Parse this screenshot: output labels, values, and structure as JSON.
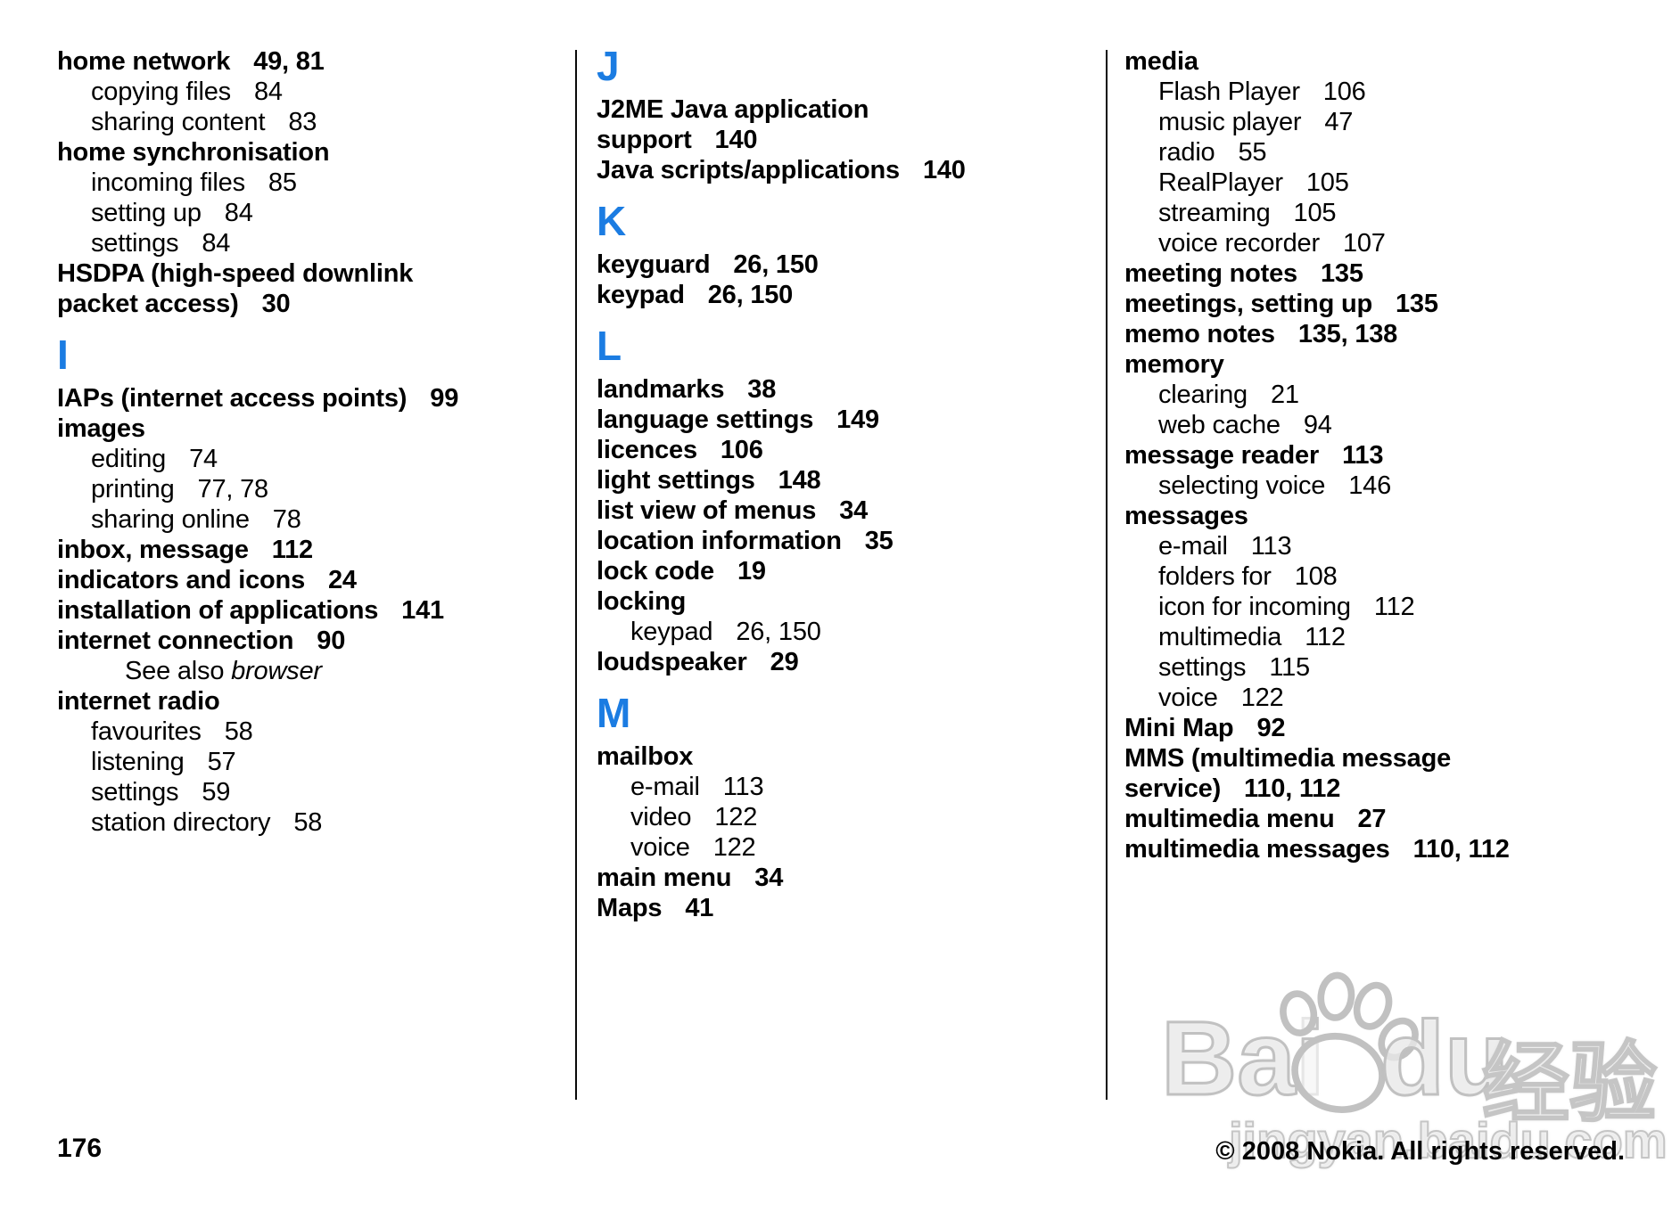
{
  "accent_color": "#1b7ce2",
  "columns": [
    {
      "blocks": [
        {
          "type": "entry",
          "label": "home network",
          "pages": "49, 81",
          "bold": true
        },
        {
          "type": "entry",
          "label": "copying files",
          "pages": "84",
          "sub": true
        },
        {
          "type": "entry",
          "label": "sharing content",
          "pages": "83",
          "sub": true
        },
        {
          "type": "entry",
          "label": "home synchronisation",
          "bold": true
        },
        {
          "type": "entry",
          "label": "incoming files",
          "pages": "85",
          "sub": true
        },
        {
          "type": "entry",
          "label": "setting up",
          "pages": "84",
          "sub": true
        },
        {
          "type": "entry",
          "label": "settings",
          "pages": "84",
          "sub": true
        },
        {
          "type": "entry",
          "lines": [
            "HSDPA (high-speed downlink",
            "packet access)"
          ],
          "pages": "30",
          "bold": true
        },
        {
          "type": "letter",
          "label": "I"
        },
        {
          "type": "entry",
          "label": "IAPs (internet access points)",
          "pages": "99",
          "bold": true
        },
        {
          "type": "entry",
          "label": "images",
          "bold": true
        },
        {
          "type": "entry",
          "label": "editing",
          "pages": "74",
          "sub": true
        },
        {
          "type": "entry",
          "label": "printing",
          "pages": "77, 78",
          "sub": true
        },
        {
          "type": "entry",
          "label": "sharing online",
          "pages": "78",
          "sub": true
        },
        {
          "type": "entry",
          "label": "inbox, message",
          "pages": "112",
          "bold": true
        },
        {
          "type": "entry",
          "label": "indicators and icons",
          "pages": "24",
          "bold": true
        },
        {
          "type": "entry",
          "label": "installation of applications",
          "pages": "141",
          "bold": true
        },
        {
          "type": "entry",
          "label": "internet connection",
          "pages": "90",
          "bold": true
        },
        {
          "type": "seealso",
          "prefix": "See also ",
          "ref": "browser"
        },
        {
          "type": "entry",
          "label": "internet radio",
          "bold": true
        },
        {
          "type": "entry",
          "label": "favourites",
          "pages": "58",
          "sub": true
        },
        {
          "type": "entry",
          "label": "listening",
          "pages": "57",
          "sub": true
        },
        {
          "type": "entry",
          "label": "settings",
          "pages": "59",
          "sub": true
        },
        {
          "type": "entry",
          "label": "station directory",
          "pages": "58",
          "sub": true
        }
      ]
    },
    {
      "blocks": [
        {
          "type": "letter",
          "label": "J"
        },
        {
          "type": "entry",
          "lines": [
            "J2ME Java application",
            "support"
          ],
          "pages": "140",
          "bold": true
        },
        {
          "type": "entry",
          "label": "Java scripts/applications",
          "pages": "140",
          "bold": true
        },
        {
          "type": "letter",
          "label": "K"
        },
        {
          "type": "entry",
          "label": "keyguard",
          "pages": "26, 150",
          "bold": true
        },
        {
          "type": "entry",
          "label": "keypad",
          "pages": "26, 150",
          "bold": true
        },
        {
          "type": "letter",
          "label": "L"
        },
        {
          "type": "entry",
          "label": "landmarks",
          "pages": "38",
          "bold": true
        },
        {
          "type": "entry",
          "label": "language settings",
          "pages": "149",
          "bold": true
        },
        {
          "type": "entry",
          "label": "licences",
          "pages": "106",
          "bold": true
        },
        {
          "type": "entry",
          "label": "light settings",
          "pages": "148",
          "bold": true
        },
        {
          "type": "entry",
          "label": "list view of menus",
          "pages": "34",
          "bold": true
        },
        {
          "type": "entry",
          "label": "location information",
          "pages": "35",
          "bold": true
        },
        {
          "type": "entry",
          "label": "lock code",
          "pages": "19",
          "bold": true
        },
        {
          "type": "entry",
          "label": "locking",
          "bold": true
        },
        {
          "type": "entry",
          "label": "keypad",
          "pages": "26, 150",
          "sub": true
        },
        {
          "type": "entry",
          "label": "loudspeaker",
          "pages": "29",
          "bold": true
        },
        {
          "type": "letter",
          "label": "M"
        },
        {
          "type": "entry",
          "label": "mailbox",
          "bold": true
        },
        {
          "type": "entry",
          "label": "e-mail",
          "pages": "113",
          "sub": true
        },
        {
          "type": "entry",
          "label": "video",
          "pages": "122",
          "sub": true
        },
        {
          "type": "entry",
          "label": "voice",
          "pages": "122",
          "sub": true
        },
        {
          "type": "entry",
          "label": "main menu",
          "pages": "34",
          "bold": true
        },
        {
          "type": "entry",
          "label": "Maps",
          "pages": "41",
          "bold": true
        }
      ]
    },
    {
      "blocks": [
        {
          "type": "entry",
          "label": "media",
          "bold": true
        },
        {
          "type": "entry",
          "label": "Flash Player",
          "pages": "106",
          "sub": true
        },
        {
          "type": "entry",
          "label": "music player",
          "pages": "47",
          "sub": true
        },
        {
          "type": "entry",
          "label": "radio",
          "pages": "55",
          "sub": true
        },
        {
          "type": "entry",
          "label": "RealPlayer",
          "pages": "105",
          "sub": true
        },
        {
          "type": "entry",
          "label": "streaming",
          "pages": "105",
          "sub": true
        },
        {
          "type": "entry",
          "label": "voice recorder",
          "pages": "107",
          "sub": true
        },
        {
          "type": "entry",
          "label": "meeting notes",
          "pages": "135",
          "bold": true
        },
        {
          "type": "entry",
          "label": "meetings, setting up",
          "pages": "135",
          "bold": true
        },
        {
          "type": "entry",
          "label": "memo notes",
          "pages": "135, 138",
          "bold": true
        },
        {
          "type": "entry",
          "label": "memory",
          "bold": true
        },
        {
          "type": "entry",
          "label": "clearing",
          "pages": "21",
          "sub": true
        },
        {
          "type": "entry",
          "label": "web cache",
          "pages": "94",
          "sub": true
        },
        {
          "type": "entry",
          "label": "message reader",
          "pages": "113",
          "bold": true
        },
        {
          "type": "entry",
          "label": "selecting voice",
          "pages": "146",
          "sub": true
        },
        {
          "type": "entry",
          "label": "messages",
          "bold": true
        },
        {
          "type": "entry",
          "label": "e-mail",
          "pages": "113",
          "sub": true
        },
        {
          "type": "entry",
          "label": "folders for",
          "pages": "108",
          "sub": true
        },
        {
          "type": "entry",
          "label": "icon for incoming",
          "pages": "112",
          "sub": true
        },
        {
          "type": "entry",
          "label": "multimedia",
          "pages": "112",
          "sub": true
        },
        {
          "type": "entry",
          "label": "settings",
          "pages": "115",
          "sub": true
        },
        {
          "type": "entry",
          "label": "voice",
          "pages": "122",
          "sub": true
        },
        {
          "type": "entry",
          "label": "Mini Map",
          "pages": "92",
          "bold": true
        },
        {
          "type": "entry",
          "lines": [
            "MMS (multimedia message",
            "service)"
          ],
          "pages": "110, 112",
          "bold": true
        },
        {
          "type": "entry",
          "label": "multimedia menu",
          "pages": "27",
          "bold": true
        },
        {
          "type": "entry",
          "label": "multimedia messages",
          "pages": "110, 112",
          "bold": true
        }
      ]
    }
  ],
  "footer": {
    "page_number": "176",
    "copyright": "© 2008 Nokia. All rights reserved."
  },
  "watermark": {
    "word_left": "Bai",
    "word_right": "du",
    "cn": "经验",
    "url": "jingyan.baidu.com"
  }
}
